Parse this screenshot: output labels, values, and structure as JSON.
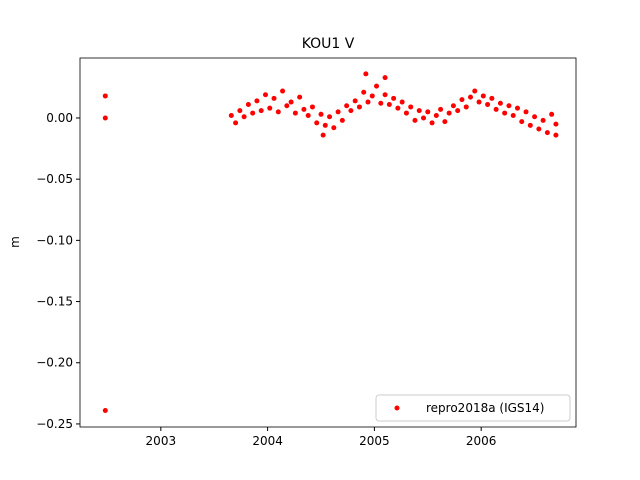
{
  "chart_data": {
    "type": "scatter",
    "title": "KOU1 V",
    "ylabel": "m",
    "xlim": [
      2002.243,
      2006.888
    ],
    "ylim": [
      -0.2525,
      0.049
    ],
    "xticks": [
      2003,
      2004,
      2005,
      2006
    ],
    "yticks": [
      {
        "value": 0,
        "label": "0.00"
      },
      {
        "value": -0.05,
        "label": "−0.05"
      },
      {
        "value": -0.1,
        "label": "−0.10"
      },
      {
        "value": -0.15,
        "label": "−0.15"
      },
      {
        "value": -0.2,
        "label": "−0.20"
      },
      {
        "value": -0.25,
        "label": "−0.25"
      }
    ],
    "grid": false,
    "legend": "lower right",
    "series": [
      {
        "name": "repro2018a (IGS14)",
        "color": "#ff0000",
        "x": [
          2002.48,
          2002.48,
          2002.48,
          2004.92,
          2005.1,
          2004.52,
          2006.7,
          2003.66,
          2003.7,
          2003.74,
          2003.78,
          2003.82,
          2003.86,
          2003.9,
          2003.94,
          2003.98,
          2004.02,
          2004.06,
          2004.1,
          2004.14,
          2004.18,
          2004.22,
          2004.26,
          2004.3,
          2004.34,
          2004.38,
          2004.42,
          2004.46,
          2004.5,
          2004.54,
          2004.58,
          2004.62,
          2004.66,
          2004.7,
          2004.74,
          2004.78,
          2004.82,
          2004.86,
          2004.9,
          2004.94,
          2004.98,
          2005.02,
          2005.06,
          2005.1,
          2005.14,
          2005.18,
          2005.22,
          2005.26,
          2005.3,
          2005.34,
          2005.38,
          2005.42,
          2005.46,
          2005.5,
          2005.54,
          2005.58,
          2005.62,
          2005.66,
          2005.7,
          2005.74,
          2005.78,
          2005.82,
          2005.86,
          2005.9,
          2005.94,
          2005.98,
          2006.02,
          2006.06,
          2006.1,
          2006.14,
          2006.18,
          2006.22,
          2006.26,
          2006.3,
          2006.34,
          2006.38,
          2006.42,
          2006.46,
          2006.5,
          2006.54,
          2006.58,
          2006.62,
          2006.66,
          2006.7
        ],
        "values": [
          0.018,
          0.0,
          -0.239,
          0.036,
          0.033,
          -0.014,
          -0.014,
          0.002,
          -0.004,
          0.006,
          0.001,
          0.011,
          0.004,
          0.014,
          0.006,
          0.019,
          0.008,
          0.016,
          0.005,
          0.022,
          0.01,
          0.013,
          0.004,
          0.017,
          0.007,
          0.002,
          0.009,
          -0.004,
          0.003,
          -0.006,
          0.001,
          -0.008,
          0.005,
          -0.002,
          0.01,
          0.006,
          0.014,
          0.009,
          0.021,
          0.013,
          0.018,
          0.026,
          0.012,
          0.019,
          0.011,
          0.016,
          0.008,
          0.013,
          0.004,
          0.009,
          -0.002,
          0.006,
          0.0,
          0.005,
          -0.004,
          0.002,
          0.007,
          -0.003,
          0.004,
          0.01,
          0.006,
          0.015,
          0.009,
          0.017,
          0.022,
          0.013,
          0.018,
          0.011,
          0.016,
          0.007,
          0.012,
          0.004,
          0.01,
          0.002,
          0.008,
          -0.003,
          0.005,
          -0.006,
          0.001,
          -0.009,
          -0.002,
          -0.012,
          0.003,
          -0.005
        ]
      }
    ]
  }
}
